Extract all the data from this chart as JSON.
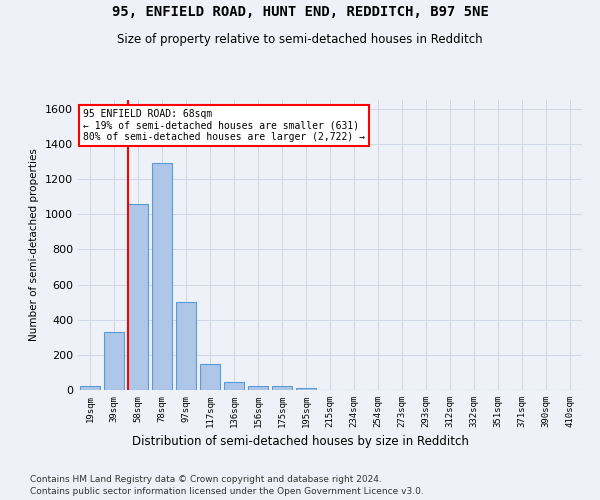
{
  "title_line1": "95, ENFIELD ROAD, HUNT END, REDDITCH, B97 5NE",
  "title_line2": "Size of property relative to semi-detached houses in Redditch",
  "xlabel": "Distribution of semi-detached houses by size in Redditch",
  "ylabel": "Number of semi-detached properties",
  "footer_line1": "Contains HM Land Registry data © Crown copyright and database right 2024.",
  "footer_line2": "Contains public sector information licensed under the Open Government Licence v3.0.",
  "bin_labels": [
    "19sqm",
    "39sqm",
    "58sqm",
    "78sqm",
    "97sqm",
    "117sqm",
    "136sqm",
    "156sqm",
    "175sqm",
    "195sqm",
    "215sqm",
    "234sqm",
    "254sqm",
    "273sqm",
    "293sqm",
    "312sqm",
    "332sqm",
    "351sqm",
    "371sqm",
    "390sqm",
    "410sqm"
  ],
  "bar_values": [
    20,
    330,
    1060,
    1290,
    500,
    150,
    45,
    25,
    20,
    10,
    0,
    0,
    0,
    0,
    0,
    0,
    0,
    0,
    0,
    0,
    0
  ],
  "bar_color": "#aec6e8",
  "bar_edge_color": "#5b9bd5",
  "annotation_text_line1": "95 ENFIELD ROAD: 68sqm",
  "annotation_text_line2": "← 19% of semi-detached houses are smaller (631)",
  "annotation_text_line3": "80% of semi-detached houses are larger (2,722) →",
  "annotation_box_color": "red",
  "grid_color": "#d0d8e8",
  "background_color": "#eef2f8",
  "ylim": [
    0,
    1650
  ],
  "yticks": [
    0,
    200,
    400,
    600,
    800,
    1000,
    1200,
    1400,
    1600
  ]
}
